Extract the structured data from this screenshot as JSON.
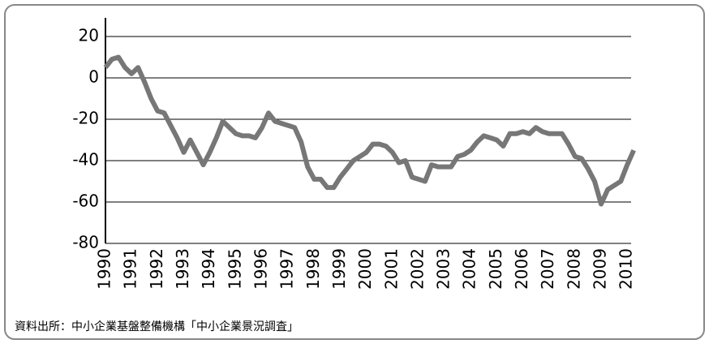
{
  "chart_data": {
    "type": "line",
    "categories": [
      "1990",
      null,
      null,
      null,
      "1991",
      null,
      null,
      null,
      "1992",
      null,
      null,
      null,
      "1993",
      null,
      null,
      null,
      "1994",
      null,
      null,
      null,
      "1995",
      null,
      null,
      null,
      "1996",
      null,
      null,
      null,
      "1997",
      null,
      null,
      null,
      "1998",
      null,
      null,
      null,
      "1999",
      null,
      null,
      null,
      "2000",
      null,
      null,
      null,
      "2001",
      null,
      null,
      null,
      "2002",
      null,
      null,
      null,
      "2003",
      null,
      null,
      null,
      "2004",
      null,
      null,
      null,
      "2005",
      null,
      null,
      null,
      "2006",
      null,
      null,
      null,
      "2007",
      null,
      null,
      null,
      "2008",
      null,
      null,
      null,
      "2009",
      null,
      null,
      null,
      "2010",
      null
    ],
    "values": [
      5,
      9,
      10,
      5,
      2,
      5,
      -2,
      -10,
      -16,
      -17,
      -23,
      -29,
      -36,
      -30,
      -36,
      -42,
      -36,
      -29,
      -21,
      -24,
      -27,
      -28,
      -28,
      -29,
      -24,
      -17,
      -21,
      -22,
      -23,
      -24,
      -31,
      -43,
      -49,
      -49,
      -53,
      -53,
      -48,
      -44,
      -40,
      -38,
      -36,
      -32,
      -32,
      -33,
      -36,
      -41,
      -40,
      -48,
      -49,
      -50,
      -42,
      -43,
      -43,
      -43,
      -38,
      -37,
      -35,
      -31,
      -28,
      -29,
      -30,
      -33,
      -27,
      -27,
      -26,
      -27,
      -24,
      -26,
      -27,
      -27,
      -27,
      -32,
      -38,
      -39,
      -44,
      -50,
      -61,
      -54,
      -52,
      -50,
      -42,
      -35
    ],
    "color": "#777777",
    "ylim": [
      -80,
      29
    ],
    "yticks": [
      20,
      0,
      -20,
      -40,
      -60,
      -80
    ],
    "grid": true,
    "source": "資料出所：中小企業基盤整備機構「中小企業景況調査」"
  }
}
